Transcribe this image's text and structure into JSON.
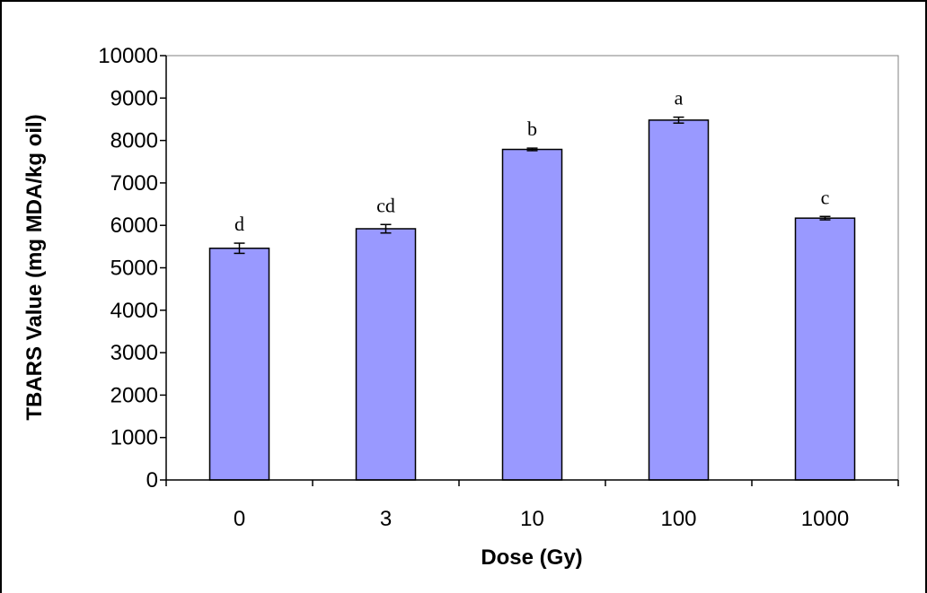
{
  "chart_data": {
    "type": "bar",
    "title": "",
    "xlabel": "Dose (Gy)",
    "ylabel": "TBARS Value (mg MDA/kg oil)",
    "categories": [
      "0",
      "3",
      "10",
      "100",
      "1000"
    ],
    "values": [
      5460,
      5920,
      7790,
      8480,
      6170
    ],
    "errors": [
      120,
      100,
      30,
      70,
      40
    ],
    "significance_letters": [
      "d",
      "cd",
      "b",
      "a",
      "c"
    ],
    "ylim": [
      0,
      10000
    ],
    "yticks": [
      0,
      1000,
      2000,
      3000,
      4000,
      5000,
      6000,
      7000,
      8000,
      9000,
      10000
    ],
    "grid": false,
    "legend": "none",
    "colors": {
      "bar_fill": "#9999ff",
      "bar_stroke": "#000000",
      "axis": "#000000",
      "frame": "#000000"
    }
  }
}
